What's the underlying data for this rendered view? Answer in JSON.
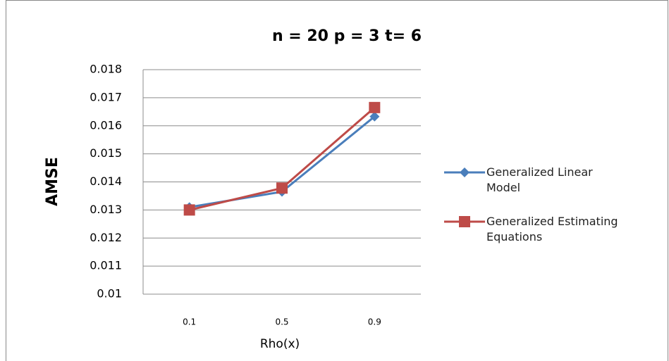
{
  "chart_data": {
    "type": "line",
    "title": "n = 20  p = 3  t= 6",
    "x_label": "Rho(x)",
    "y_label": "AMSE",
    "categories": [
      "0.1",
      "0.5",
      "0.9"
    ],
    "series": [
      {
        "name": "Generalized Linear Model",
        "color": "#4a7ebb",
        "marker": "diamond",
        "values": [
          0.0131,
          0.01365,
          0.01633
        ]
      },
      {
        "name": "Generalized Estimating Equations",
        "color": "#be4b48",
        "marker": "square",
        "values": [
          0.013,
          0.01378,
          0.01665
        ]
      }
    ],
    "ylim": [
      0.01,
      0.018
    ],
    "yticks": [
      0.01,
      0.011,
      0.012,
      0.013,
      0.014,
      0.015,
      0.016,
      0.017,
      0.018
    ],
    "grid": true,
    "legend": "right"
  }
}
